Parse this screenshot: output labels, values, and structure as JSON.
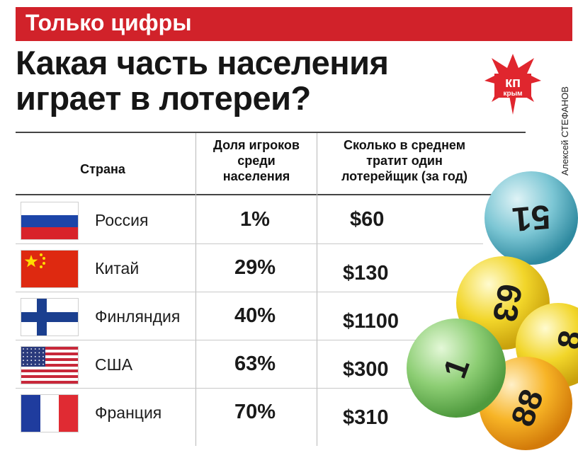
{
  "rubric": "Только цифры",
  "headline": {
    "line1": "Какая часть населения",
    "line2": "играет в лотереи?"
  },
  "logo": {
    "text": "кп",
    "subtext": "крым"
  },
  "author": "Алексей СТЕФАНОВ",
  "columns": {
    "country": "Страна",
    "share": [
      "Доля игроков",
      "среди",
      "населения"
    ],
    "spend": [
      "Сколько в среднем",
      "тратит один",
      "лотерейщик (за год)"
    ]
  },
  "balls": [
    "51",
    "63",
    "1",
    "88",
    "8"
  ],
  "chart_data": {
    "type": "table",
    "title": "Какая часть населения играет в лотереи?",
    "columns": [
      "Страна",
      "Доля игроков среди населения",
      "Сколько в среднем тратит один лотерейщик (за год)"
    ],
    "rows": [
      {
        "country": "Россия",
        "flag": "russia",
        "share": "1%",
        "spend": "$60"
      },
      {
        "country": "Китай",
        "flag": "china",
        "share": "29%",
        "spend": "$130"
      },
      {
        "country": "Финляндия",
        "flag": "finland",
        "share": "40%",
        "spend": "$1100"
      },
      {
        "country": "США",
        "flag": "usa",
        "share": "63%",
        "spend": "$300"
      },
      {
        "country": "Франция",
        "flag": "france",
        "share": "70%",
        "spend": "$310"
      }
    ]
  }
}
